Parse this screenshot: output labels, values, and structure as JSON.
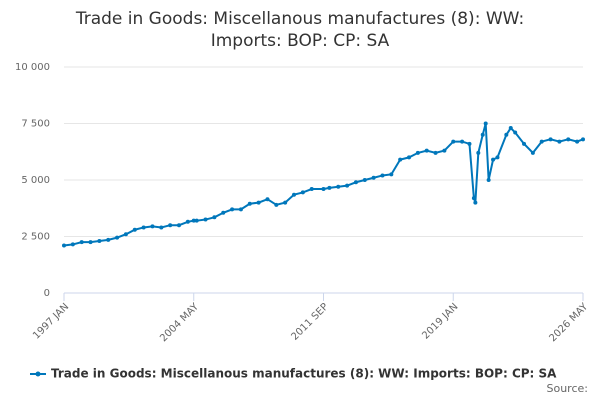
{
  "chart_data": {
    "type": "line",
    "title": "Trade in Goods: Miscellanous manufactures (8): WW: Imports: BOP: CP: SA",
    "credit": "Source:",
    "series": [
      {
        "name": "Trade in Goods: Miscellanous manufactures (8): WW: Imports: BOP: CP: SA",
        "color": "#0077bb",
        "x": [
          "1997 JAN",
          "1997 JUL",
          "1998 JAN",
          "1998 JUL",
          "1999 JAN",
          "1999 JUL",
          "2000 JAN",
          "2000 JUL",
          "2001 JAN",
          "2001 JUL",
          "2002 JAN",
          "2002 JUL",
          "2003 JAN",
          "2003 JUL",
          "2004 JAN",
          "2004 MAY",
          "2004 JUL",
          "2005 JAN",
          "2005 JUL",
          "2006 JAN",
          "2006 JUL",
          "2007 JAN",
          "2007 JUL",
          "2008 JAN",
          "2008 JUL",
          "2009 JAN",
          "2009 JUL",
          "2010 JAN",
          "2010 JUL",
          "2011 JAN",
          "2011 SEP",
          "2012 JAN",
          "2012 JUL",
          "2013 JAN",
          "2013 JUL",
          "2014 JAN",
          "2014 JUL",
          "2015 JAN",
          "2015 JUL",
          "2016 JAN",
          "2016 JUL",
          "2017 JAN",
          "2017 JUL",
          "2018 JAN",
          "2018 JUL",
          "2019 JAN",
          "2019 JUL",
          "2019 DEC",
          "2020 MAR",
          "2020 APR",
          "2020 JUN",
          "2020 SEP",
          "2020 NOV",
          "2021 JAN",
          "2021 APR",
          "2021 JUL",
          "2022 JAN",
          "2022 APR",
          "2022 JUL",
          "2023 JAN",
          "2023 JUL",
          "2024 JAN",
          "2024 JUL",
          "2025 JAN",
          "2025 JUL",
          "2026 JAN",
          "2026 MAY"
        ],
        "values": [
          2100,
          2150,
          2250,
          2250,
          2300,
          2350,
          2450,
          2600,
          2800,
          2900,
          2950,
          2900,
          3000,
          3000,
          3150,
          3200,
          3200,
          3250,
          3350,
          3550,
          3700,
          3700,
          3950,
          4000,
          4150,
          3900,
          4000,
          4350,
          4450,
          4600,
          4600,
          4650,
          4700,
          4750,
          4900,
          5000,
          5100,
          5200,
          5250,
          5900,
          6000,
          6200,
          6300,
          6200,
          6300,
          6700,
          6700,
          6600,
          4200,
          4000,
          6200,
          7000,
          7500,
          5000,
          5900,
          6000,
          7000,
          7300,
          7100,
          6600,
          6200,
          6700,
          6800,
          6700,
          6800,
          6700,
          6800
        ]
      }
    ],
    "xlim": [
      "1997 JAN",
      "2026 MAY"
    ],
    "xticks": [
      "1997 JAN",
      "2004 MAY",
      "2011 SEP",
      "2019 JAN",
      "2026 MAY"
    ],
    "ylim": [
      0,
      10000
    ],
    "yticks": [
      0,
      {
        "value": 2500,
        "label": "2 500"
      },
      {
        "value": 5000,
        "label": "5 000"
      },
      {
        "value": 7500,
        "label": "7 500"
      },
      {
        "value": 10000,
        "label": "10 000"
      }
    ],
    "grid": true
  }
}
